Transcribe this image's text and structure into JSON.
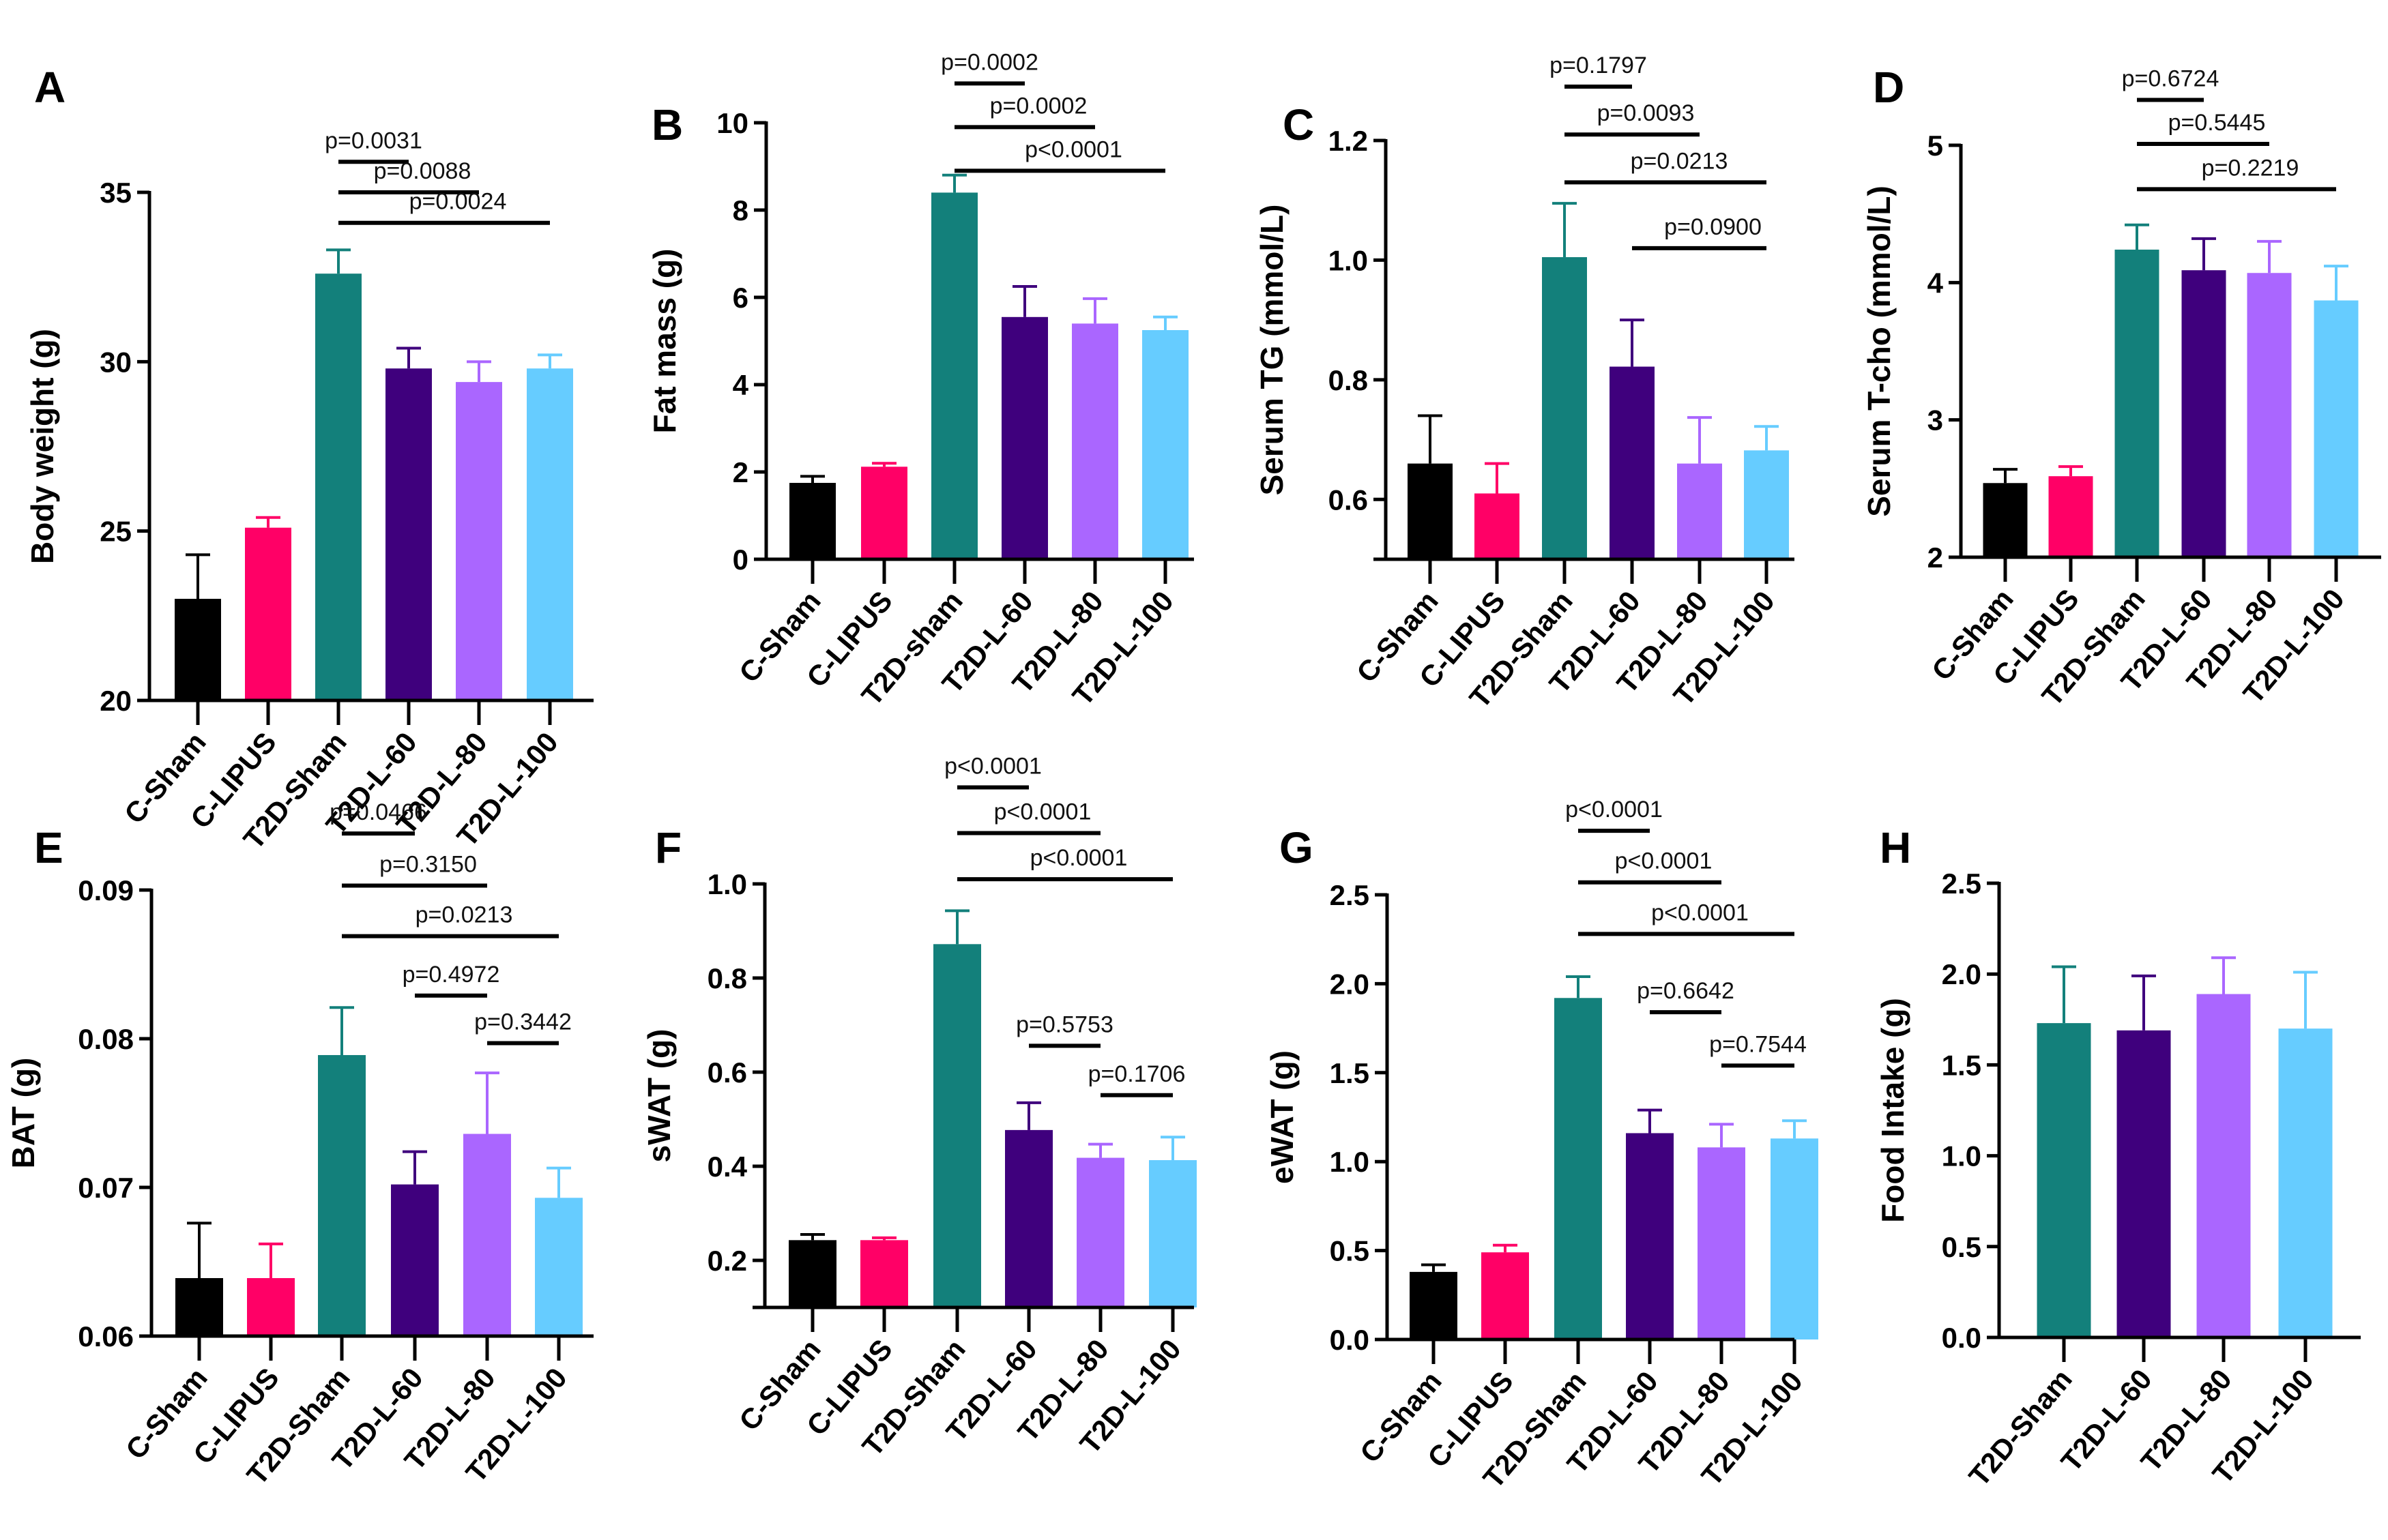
{
  "figure": {
    "colors": {
      "C-Sham": "#000000",
      "C-LIPUS": "#ff0066",
      "T2D-Sham": "#13807b",
      "T2D-L-60": "#3f007d",
      "T2D-L-80": "#aa66ff",
      "T2D-L-100": "#66ccff"
    }
  },
  "chart_data": [
    {
      "panel": "A",
      "type": "bar",
      "ylabel": "Body weight (g)",
      "ylim": [
        20,
        35
      ],
      "yticks": [
        "20",
        "25",
        "30",
        "35"
      ],
      "ytick_values": [
        20,
        25,
        30,
        35
      ],
      "categories": [
        "C-Sham",
        "C-LIPUS",
        "T2D-Sham",
        "T2D-L-60",
        "T2D-L-80",
        "T2D-L-100"
      ],
      "values": [
        23.0,
        25.1,
        32.6,
        29.8,
        29.4,
        29.8
      ],
      "error_upper": [
        24.3,
        25.4,
        33.3,
        30.4,
        30.0,
        30.2
      ],
      "comparisons": [
        {
          "from": 2,
          "to": 3,
          "label": "p=0.0031",
          "level": 35.9
        },
        {
          "from": 2,
          "to": 4,
          "label": "p=0.0088",
          "level": 35.0
        },
        {
          "from": 2,
          "to": 5,
          "label": "p=0.0024",
          "level": 34.1
        }
      ]
    },
    {
      "panel": "B",
      "type": "bar",
      "ylabel": "Fat mass (g)",
      "ylim": [
        0,
        10
      ],
      "yticks": [
        "0",
        "2",
        "4",
        "6",
        "8",
        "10"
      ],
      "ytick_values": [
        0,
        2,
        4,
        6,
        8,
        10
      ],
      "categories": [
        "C-Sham",
        "C-LIPUS",
        "T2D-sham",
        "T2D-L-60",
        "T2D-L-80",
        "T2D-L-100"
      ],
      "values": [
        1.75,
        2.12,
        8.4,
        5.55,
        5.4,
        5.25
      ],
      "error_upper": [
        1.9,
        2.2,
        8.8,
        6.25,
        5.97,
        5.55
      ],
      "comparisons": [
        {
          "from": 2,
          "to": 3,
          "label": "p=0.0002",
          "level": 10.9
        },
        {
          "from": 2,
          "to": 4,
          "label": "p=0.0002",
          "level": 9.9
        },
        {
          "from": 2,
          "to": 5,
          "label": "p<0.0001",
          "level": 8.9
        }
      ]
    },
    {
      "panel": "C",
      "type": "bar",
      "ylabel": "Serum TG (mmol/L)",
      "ylim": [
        0.5,
        1.2
      ],
      "yticks": [
        "0.6",
        "0.8",
        "1.0",
        "1.2"
      ],
      "ytick_values": [
        0.6,
        0.8,
        1.0,
        1.2
      ],
      "categories": [
        "C-Sham",
        "C-LIPUS",
        "T2D-Sham",
        "T2D-L-60",
        "T2D-L-80",
        "T2D-L-100"
      ],
      "values": [
        0.66,
        0.61,
        1.005,
        0.822,
        0.66,
        0.682
      ],
      "error_upper": [
        0.74,
        0.66,
        1.095,
        0.9,
        0.737,
        0.722
      ],
      "comparisons": [
        {
          "from": 2,
          "to": 3,
          "label": "p=0.1797",
          "level": 1.29
        },
        {
          "from": 2,
          "to": 4,
          "label": "p=0.0093",
          "level": 1.21
        },
        {
          "from": 2,
          "to": 5,
          "label": "p=0.0213",
          "level": 1.13
        },
        {
          "from": 3,
          "to": 5,
          "label": "p=0.0900",
          "level": 1.02
        }
      ]
    },
    {
      "panel": "D",
      "type": "bar",
      "ylabel": "Serum T-cho (mmol/L)",
      "ylim": [
        2,
        5
      ],
      "yticks": [
        "2",
        "3",
        "4",
        "5"
      ],
      "ytick_values": [
        2,
        3,
        4,
        5
      ],
      "categories": [
        "C-Sham",
        "C-LIPUS",
        "T2D-Sham",
        "T2D-L-60",
        "T2D-L-80",
        "T2D-L-100"
      ],
      "values": [
        2.54,
        2.59,
        4.24,
        4.09,
        4.07,
        3.87
      ],
      "error_upper": [
        2.64,
        2.66,
        4.42,
        4.32,
        4.3,
        4.12
      ],
      "comparisons": [
        {
          "from": 2,
          "to": 3,
          "label": "p=0.6724",
          "level": 5.33
        },
        {
          "from": 2,
          "to": 4,
          "label": "p=0.5445",
          "level": 5.01
        },
        {
          "from": 2,
          "to": 5,
          "label": "p=0.2219",
          "level": 4.68
        }
      ]
    },
    {
      "panel": "E",
      "type": "bar",
      "ylabel": "BAT (g)",
      "ylim": [
        0.06,
        0.09
      ],
      "yticks": [
        "0.06",
        "0.07",
        "0.08",
        "0.09"
      ],
      "ytick_values": [
        0.06,
        0.07,
        0.08,
        0.09
      ],
      "categories": [
        "C-Sham",
        "C-LIPUS",
        "T2D-Sham",
        "T2D-L-60",
        "T2D-L-80",
        "T2D-L-100"
      ],
      "values": [
        0.0639,
        0.0639,
        0.0789,
        0.0702,
        0.0736,
        0.0693
      ],
      "error_upper": [
        0.0676,
        0.0662,
        0.0821,
        0.0724,
        0.0777,
        0.0713
      ],
      "comparisons": [
        {
          "from": 2,
          "to": 3,
          "label": "p=0.0466",
          "level": 0.0938
        },
        {
          "from": 2,
          "to": 4,
          "label": "p=0.3150",
          "level": 0.0903
        },
        {
          "from": 2,
          "to": 5,
          "label": "p=0.0213",
          "level": 0.0869
        },
        {
          "from": 3,
          "to": 4,
          "label": "p=0.4972",
          "level": 0.0829
        },
        {
          "from": 4,
          "to": 5,
          "label": "p=0.3442",
          "level": 0.0797
        }
      ]
    },
    {
      "panel": "F",
      "type": "bar",
      "ylabel": "sWAT (g)",
      "ylim": [
        0.1,
        1.0
      ],
      "yticks": [
        "0.2",
        "0.4",
        "0.6",
        "0.8",
        "1.0"
      ],
      "ytick_values": [
        0.2,
        0.4,
        0.6,
        0.8,
        1.0
      ],
      "categories": [
        "C-Sham",
        "C-LIPUS",
        "T2D-Sham",
        "T2D-L-60",
        "T2D-L-80",
        "T2D-L-100"
      ],
      "values": [
        0.243,
        0.243,
        0.872,
        0.477,
        0.418,
        0.413
      ],
      "error_upper": [
        0.255,
        0.248,
        0.943,
        0.535,
        0.447,
        0.462
      ],
      "comparisons": [
        {
          "from": 2,
          "to": 3,
          "label": "p<0.0001",
          "level": 1.205
        },
        {
          "from": 2,
          "to": 4,
          "label": "p<0.0001",
          "level": 1.108
        },
        {
          "from": 2,
          "to": 5,
          "label": "p<0.0001",
          "level": 1.01
        },
        {
          "from": 3,
          "to": 4,
          "label": "p=0.5753",
          "level": 0.656
        },
        {
          "from": 4,
          "to": 5,
          "label": "p=0.1706",
          "level": 0.551
        }
      ]
    },
    {
      "panel": "G",
      "type": "bar",
      "ylabel": "eWAT (g)",
      "ylim": [
        0,
        2.5
      ],
      "yticks": [
        "0.0",
        "0.5",
        "1.0",
        "1.5",
        "2.0",
        "2.5"
      ],
      "ytick_values": [
        0,
        0.5,
        1.0,
        1.5,
        2.0,
        2.5
      ],
      "categories": [
        "C-Sham",
        "C-LIPUS",
        "T2D-Sham",
        "T2D-L-60",
        "T2D-L-80",
        "T2D-L-100"
      ],
      "values": [
        0.38,
        0.49,
        1.92,
        1.16,
        1.08,
        1.13
      ],
      "error_upper": [
        0.42,
        0.53,
        2.04,
        1.29,
        1.21,
        1.23
      ],
      "comparisons": [
        {
          "from": 2,
          "to": 3,
          "label": "p<0.0001",
          "level": 2.86
        },
        {
          "from": 2,
          "to": 4,
          "label": "p<0.0001",
          "level": 2.57
        },
        {
          "from": 2,
          "to": 5,
          "label": "p<0.0001",
          "level": 2.28
        },
        {
          "from": 3,
          "to": 4,
          "label": "p=0.6642",
          "level": 1.84
        },
        {
          "from": 4,
          "to": 5,
          "label": "p=0.7544",
          "level": 1.54
        }
      ]
    },
    {
      "panel": "H",
      "type": "bar",
      "ylabel": "Food Intake (g)",
      "ylim": [
        0,
        2.5
      ],
      "yticks": [
        "0.0",
        "0.5",
        "1.0",
        "1.5",
        "2.0",
        "2.5"
      ],
      "ytick_values": [
        0,
        0.5,
        1.0,
        1.5,
        2.0,
        2.5
      ],
      "categories": [
        "T2D-Sham",
        "T2D-L-60",
        "T2D-L-80",
        "T2D-L-100"
      ],
      "values": [
        1.73,
        1.69,
        1.89,
        1.7
      ],
      "error_upper": [
        2.04,
        1.99,
        2.09,
        2.01
      ],
      "comparisons": []
    }
  ]
}
